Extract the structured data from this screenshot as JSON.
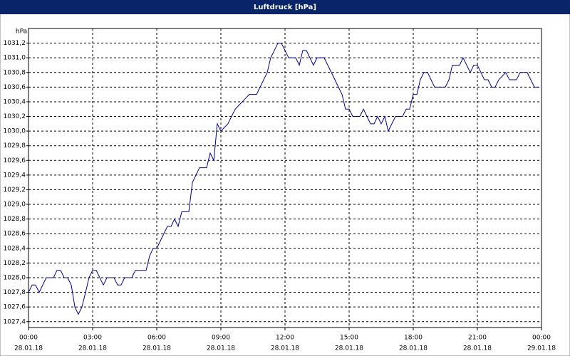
{
  "chart_data": {
    "type": "line",
    "title": "Luftdruck [hPa]",
    "y_label": "hPa",
    "x": [
      0,
      0.17,
      0.33,
      0.5,
      0.83,
      1.17,
      1.33,
      1.5,
      1.67,
      1.83,
      2,
      2.17,
      2.33,
      2.5,
      2.67,
      2.83,
      3,
      3.17,
      3.5,
      3.67,
      4,
      4.17,
      4.33,
      4.5,
      4.83,
      5,
      5.5,
      5.67,
      5.83,
      6,
      6.33,
      6.5,
      6.67,
      6.83,
      7,
      7.17,
      7.5,
      7.67,
      8,
      8.33,
      8.5,
      8.67,
      8.83,
      9,
      9.33,
      9.67,
      10,
      10.33,
      10.67,
      11,
      11.17,
      11.33,
      11.67,
      11.83,
      12,
      12.17,
      12.5,
      12.67,
      12.83,
      13,
      13.33,
      13.5,
      13.83,
      14.17,
      14.5,
      14.67,
      14.83,
      15,
      15.17,
      15.5,
      15.67,
      16,
      16.17,
      16.33,
      16.5,
      16.67,
      16.83,
      17.17,
      17.5,
      17.67,
      17.83,
      18,
      18.17,
      18.33,
      18.5,
      18.67,
      19,
      19.5,
      19.67,
      19.83,
      20.17,
      20.33,
      20.67,
      20.83,
      21,
      21.33,
      21.5,
      21.67,
      21.83,
      22,
      22.33,
      22.5,
      22.83,
      23,
      23.33,
      23.67,
      23.9
    ],
    "series": [
      {
        "name": "Luftdruck",
        "color": "#00008b",
        "values": [
          1027.8,
          1027.9,
          1027.9,
          1027.8,
          1028.0,
          1028.0,
          1028.1,
          1028.1,
          1028.0,
          1028.0,
          1027.9,
          1027.6,
          1027.5,
          1027.6,
          1027.8,
          1028.0,
          1028.1,
          1028.1,
          1027.9,
          1028.0,
          1028.0,
          1027.9,
          1027.9,
          1028.0,
          1028.0,
          1028.1,
          1028.1,
          1028.3,
          1028.4,
          1028.4,
          1028.6,
          1028.7,
          1028.7,
          1028.8,
          1028.7,
          1028.9,
          1028.9,
          1029.3,
          1029.5,
          1029.5,
          1029.7,
          1029.6,
          1030.1,
          1030.0,
          1030.1,
          1030.3,
          1030.4,
          1030.5,
          1030.5,
          1030.7,
          1030.8,
          1031.0,
          1031.2,
          1031.2,
          1031.1,
          1031.0,
          1031.0,
          1030.9,
          1031.1,
          1031.1,
          1030.9,
          1031.0,
          1031.0,
          1030.8,
          1030.6,
          1030.5,
          1030.3,
          1030.3,
          1030.2,
          1030.2,
          1030.3,
          1030.1,
          1030.1,
          1030.2,
          1030.1,
          1030.2,
          1030.0,
          1030.2,
          1030.2,
          1030.3,
          1030.3,
          1030.5,
          1030.5,
          1030.7,
          1030.8,
          1030.8,
          1030.6,
          1030.6,
          1030.7,
          1030.9,
          1030.9,
          1031.0,
          1030.8,
          1030.9,
          1030.9,
          1030.7,
          1030.7,
          1030.6,
          1030.6,
          1030.7,
          1030.8,
          1030.7,
          1030.7,
          1030.8,
          1030.8,
          1030.6,
          1030.6
        ]
      }
    ],
    "xlim": [
      0,
      24
    ],
    "xticks": [
      {
        "value": 0,
        "label": "00:00",
        "date": "28.01.18"
      },
      {
        "value": 3,
        "label": "03:00",
        "date": "28.01.18"
      },
      {
        "value": 6,
        "label": "06:00",
        "date": "28.01.18"
      },
      {
        "value": 9,
        "label": "09:00",
        "date": "28.01.18"
      },
      {
        "value": 12,
        "label": "12:00",
        "date": "28.01.18"
      },
      {
        "value": 15,
        "label": "15:00",
        "date": "28.01.18"
      },
      {
        "value": 18,
        "label": "18:00",
        "date": "28.01.18"
      },
      {
        "value": 21,
        "label": "21:00",
        "date": "28.01.18"
      },
      {
        "value": 24,
        "label": "00:00",
        "date": "29.01.18"
      }
    ],
    "ylim": [
      1027.32,
      1031.4
    ],
    "yticks": [
      {
        "value": 1027.4,
        "label": "1027,4"
      },
      {
        "value": 1027.6,
        "label": "1027,6"
      },
      {
        "value": 1027.8,
        "label": "1027,8"
      },
      {
        "value": 1028.0,
        "label": "1028,0"
      },
      {
        "value": 1028.2,
        "label": "1028,2"
      },
      {
        "value": 1028.4,
        "label": "1028,4"
      },
      {
        "value": 1028.6,
        "label": "1028,6"
      },
      {
        "value": 1028.8,
        "label": "1028,8"
      },
      {
        "value": 1029.0,
        "label": "1029,0"
      },
      {
        "value": 1029.2,
        "label": "1029,2"
      },
      {
        "value": 1029.4,
        "label": "1029,4"
      },
      {
        "value": 1029.6,
        "label": "1029,6"
      },
      {
        "value": 1029.8,
        "label": "1029,8"
      },
      {
        "value": 1030.0,
        "label": "1030,0"
      },
      {
        "value": 1030.2,
        "label": "1030,2"
      },
      {
        "value": 1030.4,
        "label": "1030,4"
      },
      {
        "value": 1030.6,
        "label": "1030,6"
      },
      {
        "value": 1030.8,
        "label": "1030,8"
      },
      {
        "value": 1031.0,
        "label": "1031,0"
      },
      {
        "value": 1031.2,
        "label": "1031,2"
      }
    ],
    "grid": true
  }
}
